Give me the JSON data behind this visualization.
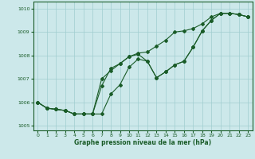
{
  "xlabel": "Graphe pression niveau de la mer (hPa)",
  "xlim": [
    -0.5,
    23.5
  ],
  "ylim": [
    1004.8,
    1010.3
  ],
  "yticks": [
    1005,
    1006,
    1007,
    1008,
    1009,
    1010
  ],
  "xticks": [
    0,
    1,
    2,
    3,
    4,
    5,
    6,
    7,
    8,
    9,
    10,
    11,
    12,
    13,
    14,
    15,
    16,
    17,
    18,
    19,
    20,
    21,
    22,
    23
  ],
  "bg_color": "#cce8ea",
  "grid_color": "#a0cdd0",
  "line_color": "#1a5c28",
  "line1_x": [
    0,
    1,
    2,
    3,
    4,
    5,
    6,
    7,
    8,
    9,
    10,
    11,
    12,
    13,
    14,
    15,
    16,
    17,
    18,
    19,
    20,
    21,
    22,
    23
  ],
  "line1_y": [
    1006.0,
    1005.75,
    1005.7,
    1005.65,
    1005.5,
    1005.5,
    1005.5,
    1005.5,
    1006.35,
    1006.75,
    1007.5,
    1007.85,
    1007.75,
    1007.05,
    1007.3,
    1007.6,
    1007.75,
    1008.35,
    1009.05,
    1009.5,
    1009.8,
    1009.8,
    1009.75,
    1009.65
  ],
  "line2_x": [
    0,
    1,
    2,
    3,
    4,
    5,
    6,
    7,
    8,
    9,
    10,
    11,
    12,
    13,
    14,
    15,
    16,
    17,
    18,
    19,
    20,
    21,
    22,
    23
  ],
  "line2_y": [
    1006.0,
    1005.75,
    1005.7,
    1005.65,
    1005.5,
    1005.5,
    1005.5,
    1006.7,
    1007.45,
    1007.65,
    1007.95,
    1008.05,
    1007.75,
    1007.05,
    1007.3,
    1007.6,
    1007.75,
    1008.35,
    1009.05,
    1009.5,
    1009.8,
    1009.8,
    1009.75,
    1009.65
  ],
  "line3_x": [
    0,
    1,
    2,
    3,
    4,
    5,
    6,
    7,
    8,
    9,
    10,
    11,
    12,
    13,
    14,
    15,
    16,
    17,
    18,
    19,
    20,
    21,
    22,
    23
  ],
  "line3_y": [
    1006.0,
    1005.75,
    1005.7,
    1005.65,
    1005.5,
    1005.5,
    1005.5,
    1007.0,
    1007.35,
    1007.65,
    1007.95,
    1008.1,
    1008.15,
    1008.4,
    1008.65,
    1009.0,
    1009.05,
    1009.15,
    1009.35,
    1009.65,
    1009.8,
    1009.8,
    1009.75,
    1009.65
  ],
  "marker": "D",
  "marker_size": 2.0,
  "line_width": 0.8
}
